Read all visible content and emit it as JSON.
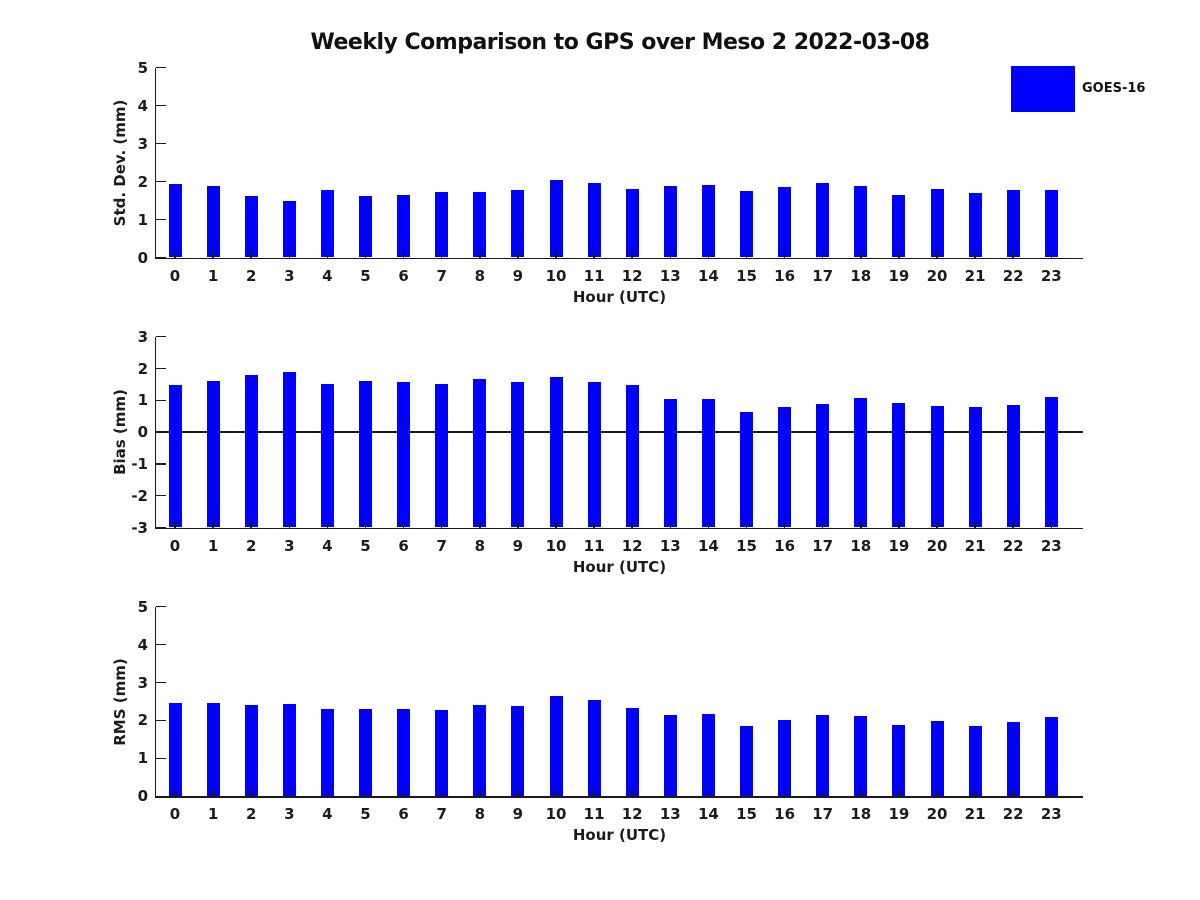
{
  "title": "Weekly Comparison to GPS over Meso 2 2022-03-08",
  "legend": {
    "label": "GOES-16",
    "color": "#0000ff",
    "position": "top-right"
  },
  "colors": {
    "bar": "#0000ff",
    "text": "#1c1c1c",
    "axis": "#1a1a1a"
  },
  "chart_data": [
    {
      "type": "bar",
      "title": "Weekly Comparison to GPS over Meso 2 2022-03-08",
      "ylabel": "Std. Dev. (mm)",
      "xlabel": "Hour (UTC)",
      "ylim": [
        0,
        5
      ],
      "yticks": [
        0,
        1,
        2,
        3,
        4,
        5
      ],
      "grid": false,
      "legend_entries": [
        "GOES-16"
      ],
      "categories": [
        0,
        1,
        2,
        3,
        4,
        5,
        6,
        7,
        8,
        9,
        10,
        11,
        12,
        13,
        14,
        15,
        16,
        17,
        18,
        19,
        20,
        21,
        22,
        23
      ],
      "series": [
        {
          "name": "GOES-16",
          "values": [
            1.93,
            1.88,
            1.62,
            1.48,
            1.78,
            1.63,
            1.65,
            1.72,
            1.73,
            1.78,
            2.05,
            1.97,
            1.8,
            1.87,
            1.9,
            1.74,
            1.85,
            1.96,
            1.88,
            1.65,
            1.79,
            1.7,
            1.77,
            1.77
          ]
        }
      ]
    },
    {
      "type": "bar",
      "title": "",
      "ylabel": "Bias (mm)",
      "xlabel": "Hour (UTC)",
      "ylim": [
        -3,
        3
      ],
      "yticks": [
        -3,
        -2,
        -1,
        0,
        1,
        2,
        3
      ],
      "grid": false,
      "legend_entries": [
        "GOES-16"
      ],
      "categories": [
        0,
        1,
        2,
        3,
        4,
        5,
        6,
        7,
        8,
        9,
        10,
        11,
        12,
        13,
        14,
        15,
        16,
        17,
        18,
        19,
        20,
        21,
        22,
        23
      ],
      "series": [
        {
          "name": "GOES-16",
          "values": [
            1.48,
            1.61,
            1.8,
            1.88,
            1.5,
            1.62,
            1.58,
            1.5,
            1.67,
            1.57,
            1.73,
            1.58,
            1.48,
            1.03,
            1.05,
            0.62,
            0.8,
            0.87,
            1.08,
            0.9,
            0.83,
            0.78,
            0.85,
            1.1
          ]
        }
      ]
    },
    {
      "type": "bar",
      "title": "",
      "ylabel": "RMS (mm)",
      "xlabel": "Hour (UTC)",
      "ylim": [
        0,
        5
      ],
      "yticks": [
        0,
        1,
        2,
        3,
        4,
        5
      ],
      "grid": false,
      "legend_entries": [
        "GOES-16"
      ],
      "categories": [
        0,
        1,
        2,
        3,
        4,
        5,
        6,
        7,
        8,
        9,
        10,
        11,
        12,
        13,
        14,
        15,
        16,
        17,
        18,
        19,
        20,
        21,
        22,
        23
      ],
      "series": [
        {
          "name": "GOES-16",
          "values": [
            2.45,
            2.47,
            2.42,
            2.43,
            2.31,
            2.31,
            2.3,
            2.28,
            2.42,
            2.38,
            2.65,
            2.53,
            2.33,
            2.15,
            2.17,
            1.85,
            2.01,
            2.15,
            2.13,
            1.88,
            1.99,
            1.86,
            1.96,
            2.08
          ]
        }
      ]
    }
  ]
}
